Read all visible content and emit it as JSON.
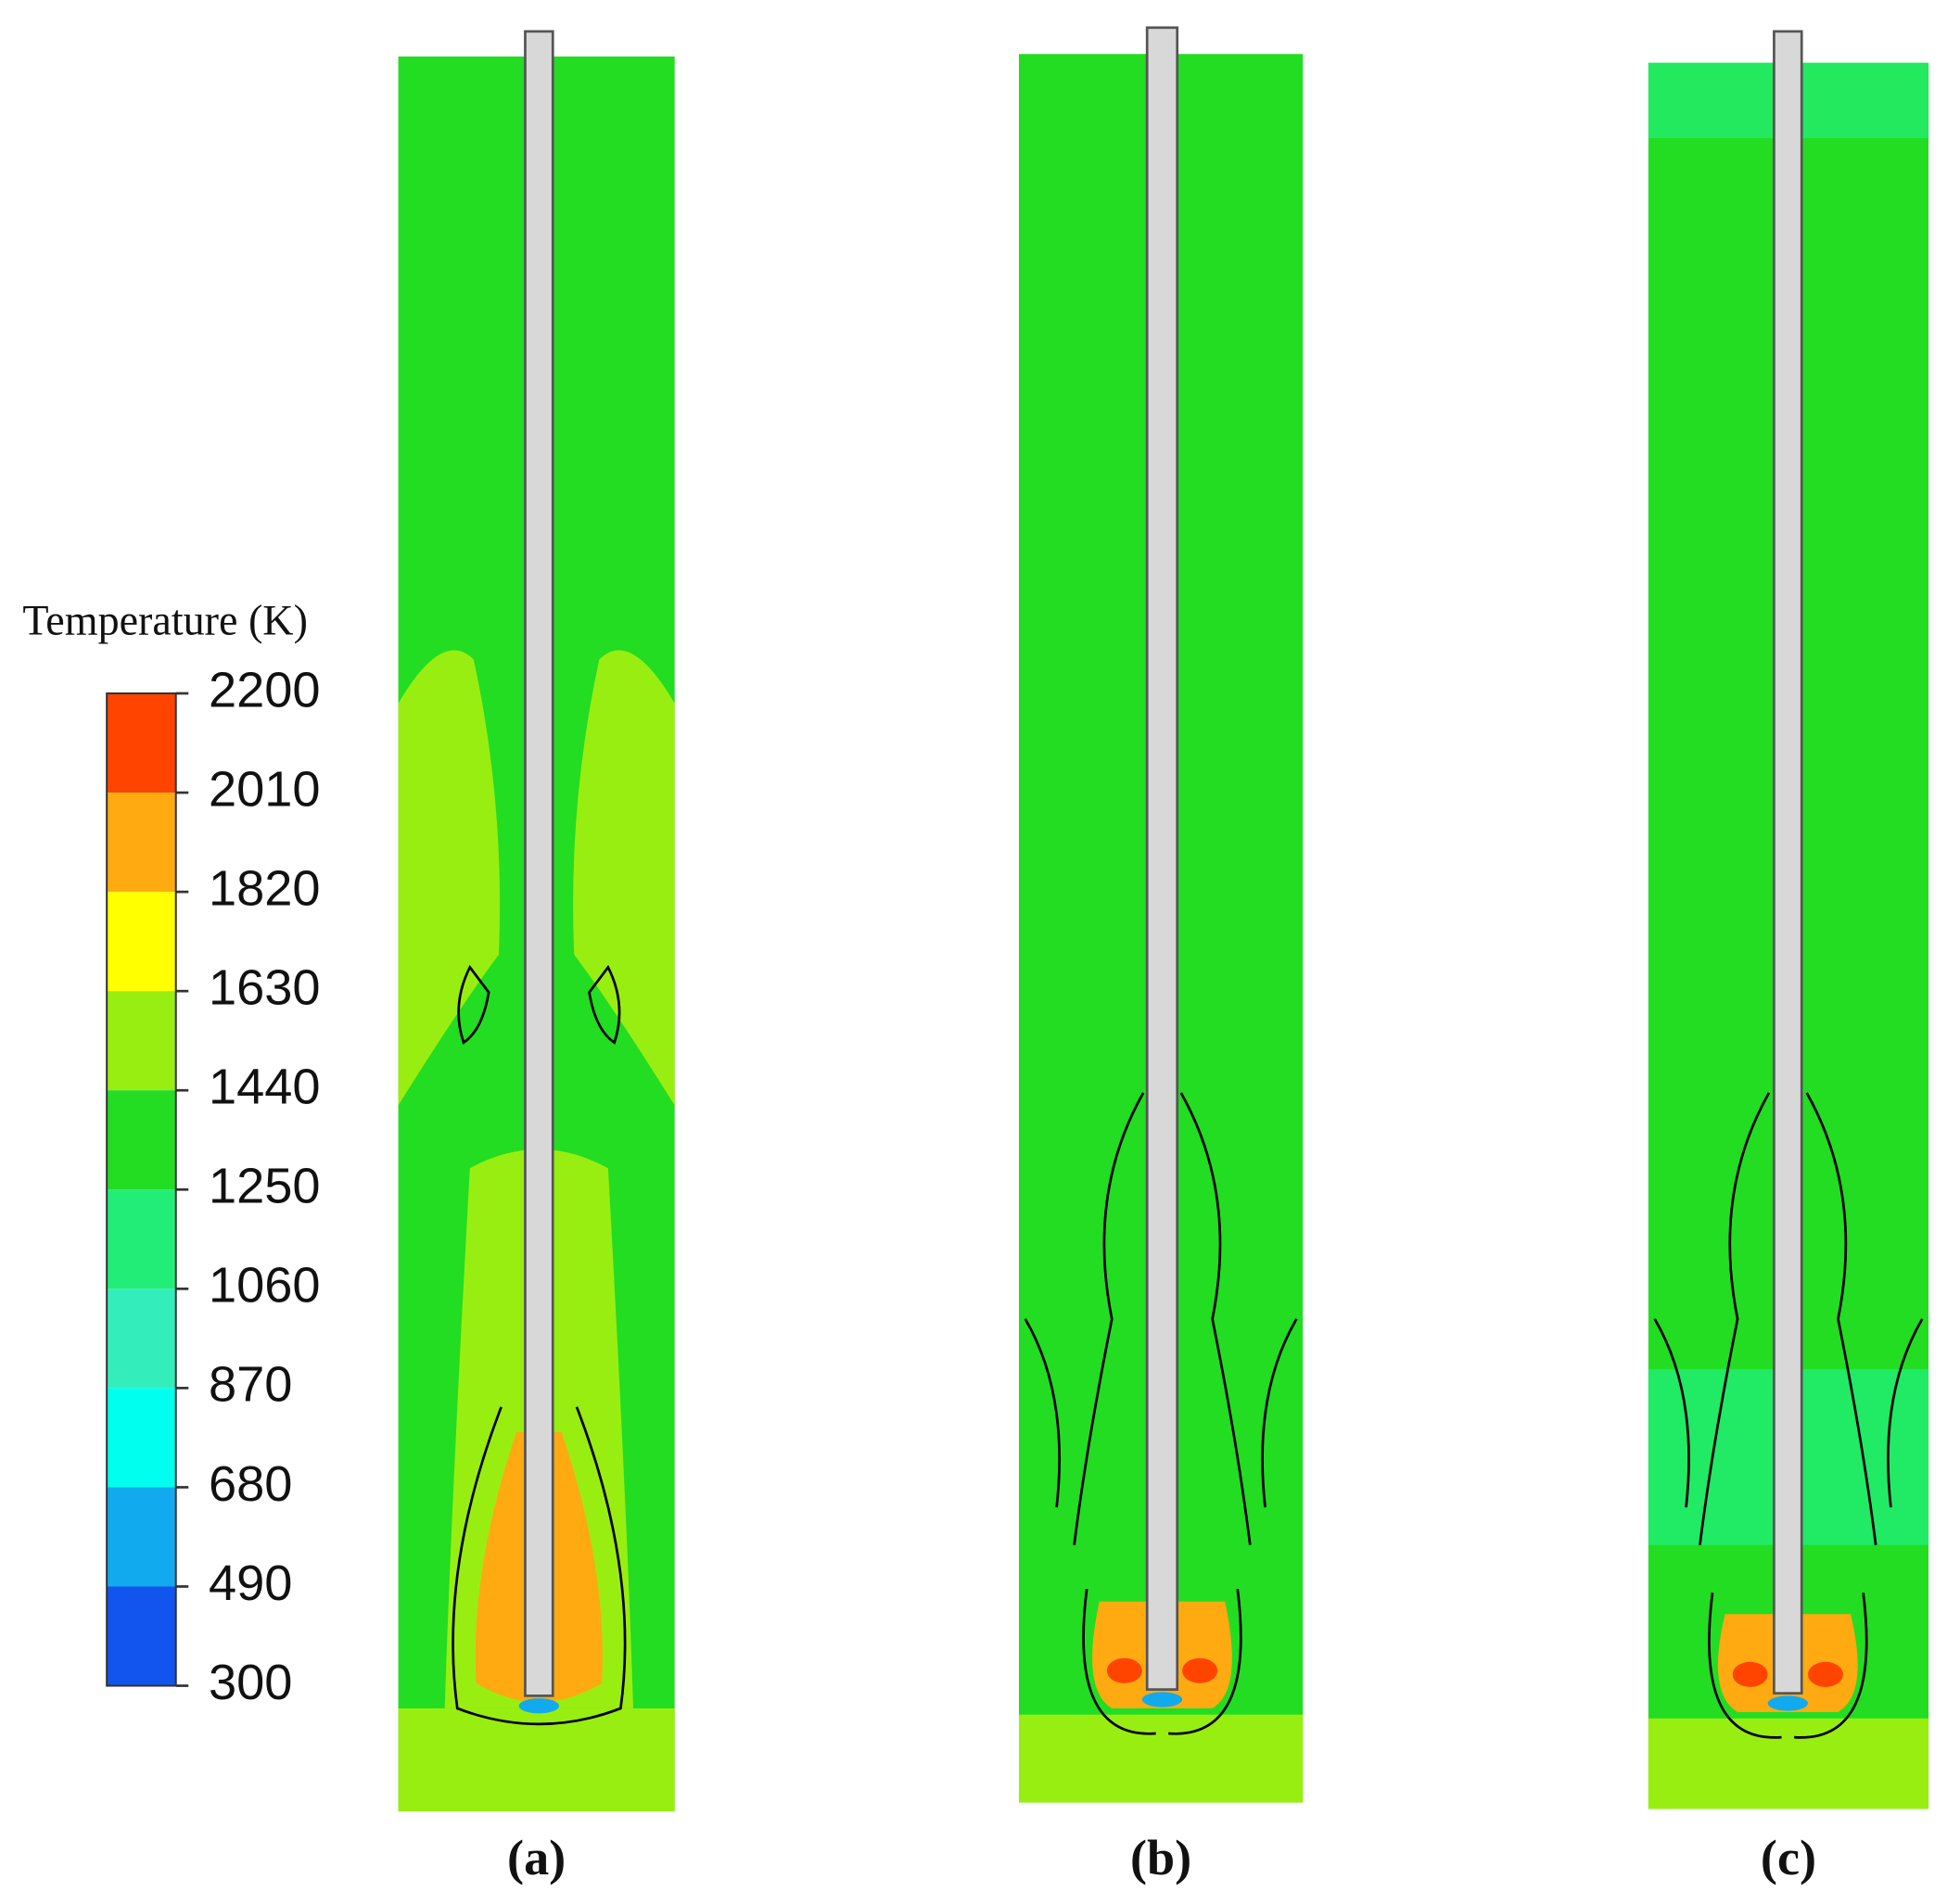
{
  "legend": {
    "title": "Temperature (K)",
    "levels": [
      "2200",
      "2010",
      "1820",
      "1630",
      "1440",
      "1250",
      "1060",
      "870",
      "680",
      "490",
      "300"
    ]
  },
  "panels": [
    {
      "label": "(a)"
    },
    {
      "label": "(b)"
    },
    {
      "label": "(c)"
    }
  ]
}
